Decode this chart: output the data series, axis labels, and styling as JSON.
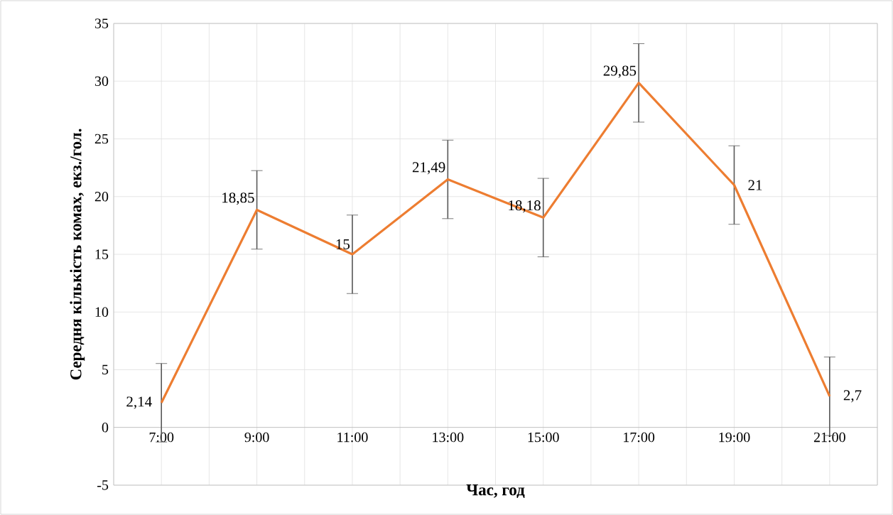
{
  "chart_data": {
    "type": "line",
    "xlabel": "Час, год",
    "ylabel": "Середня кількість комах, екз./гол.",
    "categories": [
      "7:00",
      "9:00",
      "11:00",
      "13:00",
      "15:00",
      "17:00",
      "19:00",
      "21:00"
    ],
    "values": [
      2.14,
      18.85,
      15,
      21.49,
      18.18,
      29.85,
      21,
      2.7
    ],
    "value_labels": [
      "2,14",
      "18,85",
      "15",
      "21,49",
      "18,18",
      "29,85",
      "21",
      "2,7"
    ],
    "errors": [
      3.4,
      3.4,
      3.4,
      3.4,
      3.4,
      3.4,
      3.4,
      3.4
    ],
    "color": "#ed7d31",
    "ylim": [
      -5,
      35
    ],
    "yticks": [
      -5,
      0,
      5,
      10,
      15,
      20,
      25,
      30,
      35
    ],
    "grid": true
  }
}
